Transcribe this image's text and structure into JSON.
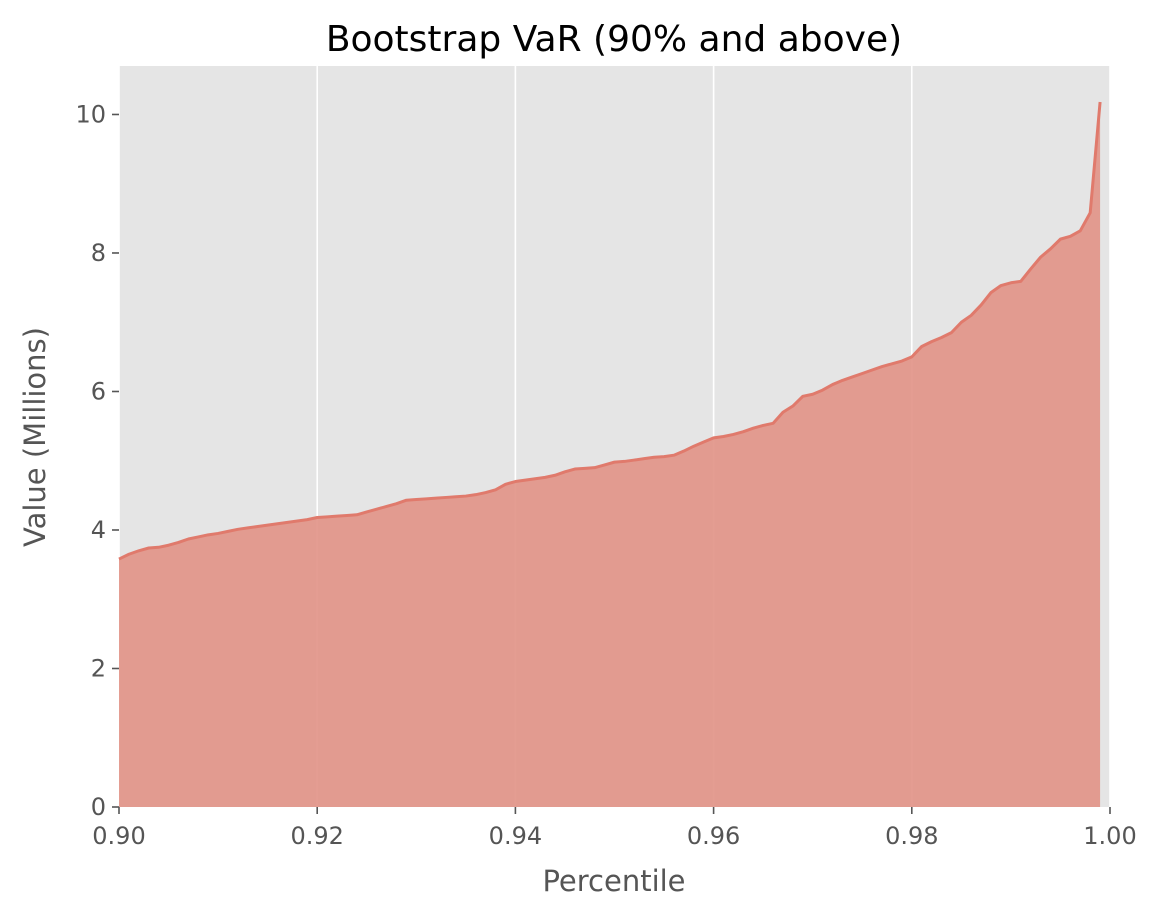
{
  "chart_data": {
    "type": "area",
    "title": "Bootstrap VaR (90% and above)",
    "xlabel": "Percentile",
    "ylabel": "Value (Millions)",
    "xlim": [
      0.9,
      1.0
    ],
    "ylim": [
      0,
      10.7
    ],
    "grid": "vertical",
    "x_ticks": [
      "0.90",
      "0.92",
      "0.94",
      "0.96",
      "0.98",
      "1.00"
    ],
    "y_ticks": [
      "0",
      "2",
      "4",
      "6",
      "8",
      "10"
    ],
    "colors": {
      "plot_background": "#e5e5e5",
      "fill": "#e2968a",
      "line": "#e07a6c",
      "grid": "#ffffff",
      "tick_mark": "#555555"
    },
    "series": [
      {
        "x": [
          0.9,
          0.901,
          0.902,
          0.903,
          0.904,
          0.905,
          0.906,
          0.907,
          0.908,
          0.909,
          0.91,
          0.911,
          0.912,
          0.913,
          0.914,
          0.915,
          0.916,
          0.917,
          0.918,
          0.919,
          0.92,
          0.921,
          0.922,
          0.923,
          0.924,
          0.925,
          0.926,
          0.927,
          0.928,
          0.929,
          0.93,
          0.931,
          0.932,
          0.933,
          0.934,
          0.935,
          0.936,
          0.937,
          0.938,
          0.939,
          0.94,
          0.941,
          0.942,
          0.943,
          0.944,
          0.945,
          0.946,
          0.947,
          0.948,
          0.949,
          0.95,
          0.951,
          0.952,
          0.953,
          0.954,
          0.955,
          0.956,
          0.957,
          0.958,
          0.959,
          0.96,
          0.961,
          0.962,
          0.963,
          0.964,
          0.965,
          0.966,
          0.967,
          0.968,
          0.969,
          0.97,
          0.971,
          0.972,
          0.973,
          0.974,
          0.975,
          0.976,
          0.977,
          0.978,
          0.979,
          0.98,
          0.981,
          0.982,
          0.983,
          0.984,
          0.985,
          0.986,
          0.987,
          0.988,
          0.989,
          0.99,
          0.991,
          0.992,
          0.993,
          0.994,
          0.995,
          0.996,
          0.997,
          0.998,
          0.999
        ],
        "values": [
          3.58,
          3.65,
          3.7,
          3.74,
          3.75,
          3.78,
          3.82,
          3.87,
          3.9,
          3.93,
          3.95,
          3.98,
          4.01,
          4.03,
          4.05,
          4.07,
          4.09,
          4.11,
          4.13,
          4.15,
          4.18,
          4.19,
          4.2,
          4.21,
          4.22,
          4.26,
          4.3,
          4.34,
          4.38,
          4.43,
          4.44,
          4.45,
          4.46,
          4.47,
          4.48,
          4.49,
          4.51,
          4.54,
          4.58,
          4.66,
          4.7,
          4.72,
          4.74,
          4.76,
          4.79,
          4.84,
          4.88,
          4.89,
          4.9,
          4.94,
          4.98,
          4.99,
          5.01,
          5.03,
          5.05,
          5.06,
          5.08,
          5.14,
          5.21,
          5.27,
          5.33,
          5.35,
          5.38,
          5.42,
          5.47,
          5.51,
          5.54,
          5.7,
          5.79,
          5.93,
          5.96,
          6.02,
          6.1,
          6.16,
          6.21,
          6.26,
          6.31,
          6.36,
          6.4,
          6.44,
          6.5,
          6.65,
          6.72,
          6.78,
          6.85,
          7.0,
          7.1,
          7.25,
          7.43,
          7.53,
          7.57,
          7.59,
          7.77,
          7.94,
          8.06,
          8.2,
          8.24,
          8.32,
          8.58,
          10.18
        ]
      }
    ]
  }
}
